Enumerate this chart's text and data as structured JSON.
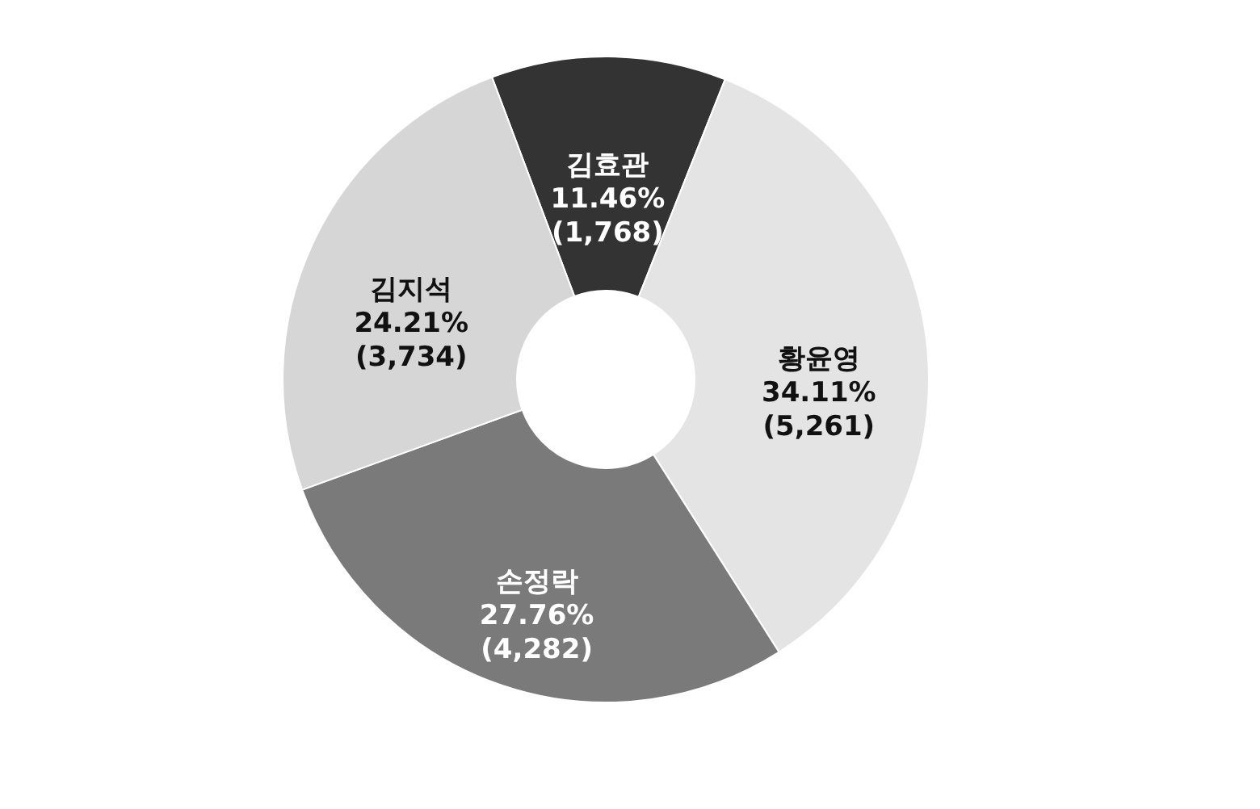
{
  "chart_data": {
    "type": "donut",
    "categories": [
      "김효관",
      "황윤영",
      "손정락",
      "김지석"
    ],
    "values": [
      1768,
      5261,
      4282,
      3734
    ],
    "colors": [
      "#333333",
      "#e4e4e4",
      "#7a7a7a",
      "#d6d6d6"
    ],
    "value_labels": [
      "11.46%\n(1,768)",
      "34.11%\n(5,261)",
      "27.76%\n(4,282)",
      "24.21%\n(3,734)"
    ],
    "legend": false
  }
}
